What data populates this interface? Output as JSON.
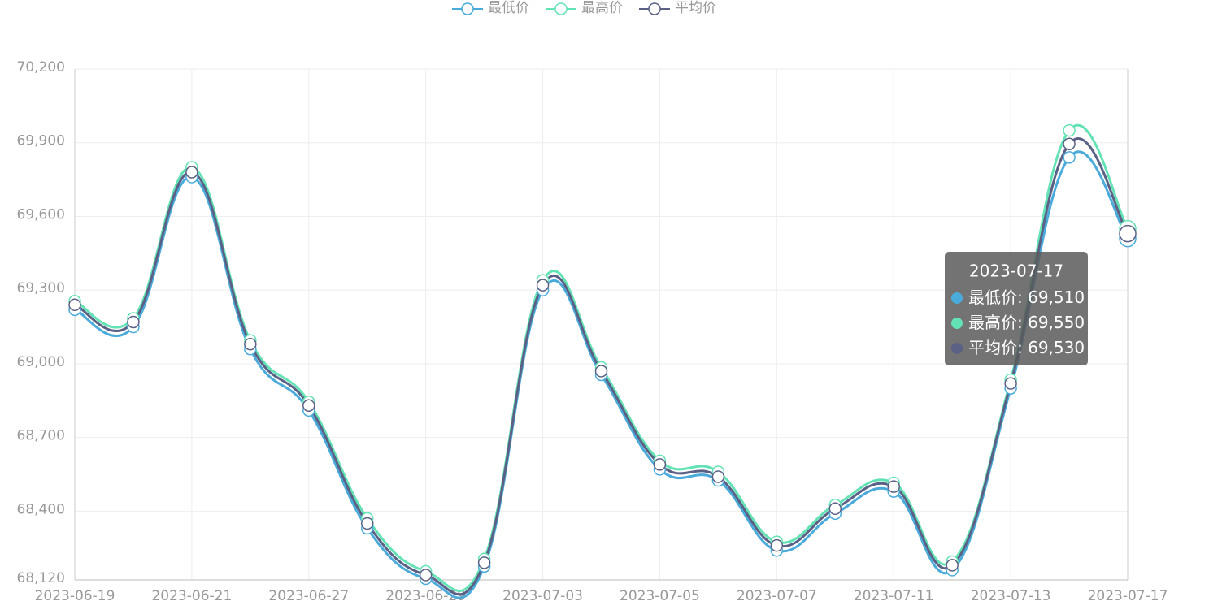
{
  "chart_data": {
    "type": "line",
    "categories": [
      "2023-06-19",
      null,
      "2023-06-21",
      null,
      "2023-06-27",
      null,
      "2023-06-29",
      null,
      "2023-07-03",
      null,
      "2023-07-05",
      null,
      "2023-07-07",
      null,
      "2023-07-11",
      null,
      "2023-07-13",
      null,
      "2023-07-17"
    ],
    "series": [
      {
        "name": "最低价",
        "color": "#4aabdb",
        "values": [
          69220,
          69150,
          69760,
          69060,
          68810,
          68330,
          68125,
          68175,
          69300,
          68955,
          68570,
          68525,
          68240,
          68390,
          68480,
          68160,
          68900,
          69840,
          69510
        ]
      },
      {
        "name": "最高价",
        "color": "#63e3b5",
        "values": [
          69255,
          69185,
          69800,
          69095,
          68845,
          68370,
          68155,
          68205,
          69340,
          68985,
          68605,
          68560,
          68275,
          68425,
          68515,
          68195,
          68935,
          69950,
          69550
        ]
      },
      {
        "name": "平均价",
        "color": "#5b6185",
        "values": [
          69240,
          69170,
          69780,
          69080,
          68830,
          68350,
          68140,
          68190,
          69320,
          68970,
          68590,
          68540,
          68260,
          68410,
          68500,
          68180,
          68920,
          69895,
          69530
        ]
      }
    ],
    "ylim": [
      68120,
      70200
    ],
    "yticks": [
      {
        "value": 68120,
        "label": "68,120"
      },
      {
        "value": 68400,
        "label": "68,400"
      },
      {
        "value": 68700,
        "label": "68,700"
      },
      {
        "value": 69000,
        "label": "69,000"
      },
      {
        "value": 69300,
        "label": "69,300"
      },
      {
        "value": 69600,
        "label": "69,600"
      },
      {
        "value": 69900,
        "label": "69,900"
      },
      {
        "value": 70200,
        "label": "70,200"
      }
    ],
    "grid": true,
    "legend": "top",
    "tooltip_labels": [
      "69,510",
      "69,550",
      "69,530"
    ]
  }
}
